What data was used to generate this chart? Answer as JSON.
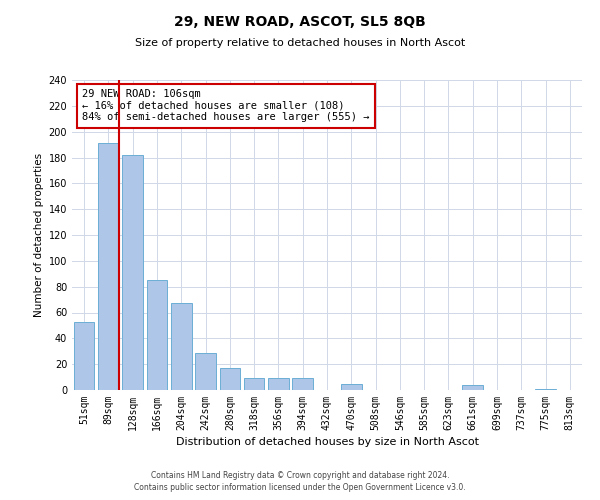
{
  "title": "29, NEW ROAD, ASCOT, SL5 8QB",
  "subtitle": "Size of property relative to detached houses in North Ascot",
  "xlabel": "Distribution of detached houses by size in North Ascot",
  "ylabel": "Number of detached properties",
  "bar_labels": [
    "51sqm",
    "89sqm",
    "128sqm",
    "166sqm",
    "204sqm",
    "242sqm",
    "280sqm",
    "318sqm",
    "356sqm",
    "394sqm",
    "432sqm",
    "470sqm",
    "508sqm",
    "546sqm",
    "585sqm",
    "623sqm",
    "661sqm",
    "699sqm",
    "737sqm",
    "775sqm",
    "813sqm"
  ],
  "bar_values": [
    53,
    191,
    182,
    85,
    67,
    29,
    17,
    9,
    9,
    9,
    0,
    5,
    0,
    0,
    0,
    0,
    4,
    0,
    0,
    1,
    0
  ],
  "bar_color": "#aec6e8",
  "bar_edge_color": "#6baed6",
  "vline_x_index": 1,
  "vline_color": "#cc0000",
  "annotation_line1": "29 NEW ROAD: 106sqm",
  "annotation_line2": "← 16% of detached houses are smaller (108)",
  "annotation_line3": "84% of semi-detached houses are larger (555) →",
  "annotation_box_color": "#ffffff",
  "annotation_box_edge": "#cc0000",
  "ylim": [
    0,
    240
  ],
  "yticks": [
    0,
    20,
    40,
    60,
    80,
    100,
    120,
    140,
    160,
    180,
    200,
    220,
    240
  ],
  "footer1": "Contains HM Land Registry data © Crown copyright and database right 2024.",
  "footer2": "Contains public sector information licensed under the Open Government Licence v3.0.",
  "background_color": "#ffffff",
  "grid_color": "#d0d8e8",
  "title_fontsize": 10,
  "subtitle_fontsize": 8,
  "xlabel_fontsize": 8,
  "ylabel_fontsize": 7.5,
  "tick_fontsize": 7,
  "annotation_fontsize": 7.5,
  "footer_fontsize": 5.5
}
